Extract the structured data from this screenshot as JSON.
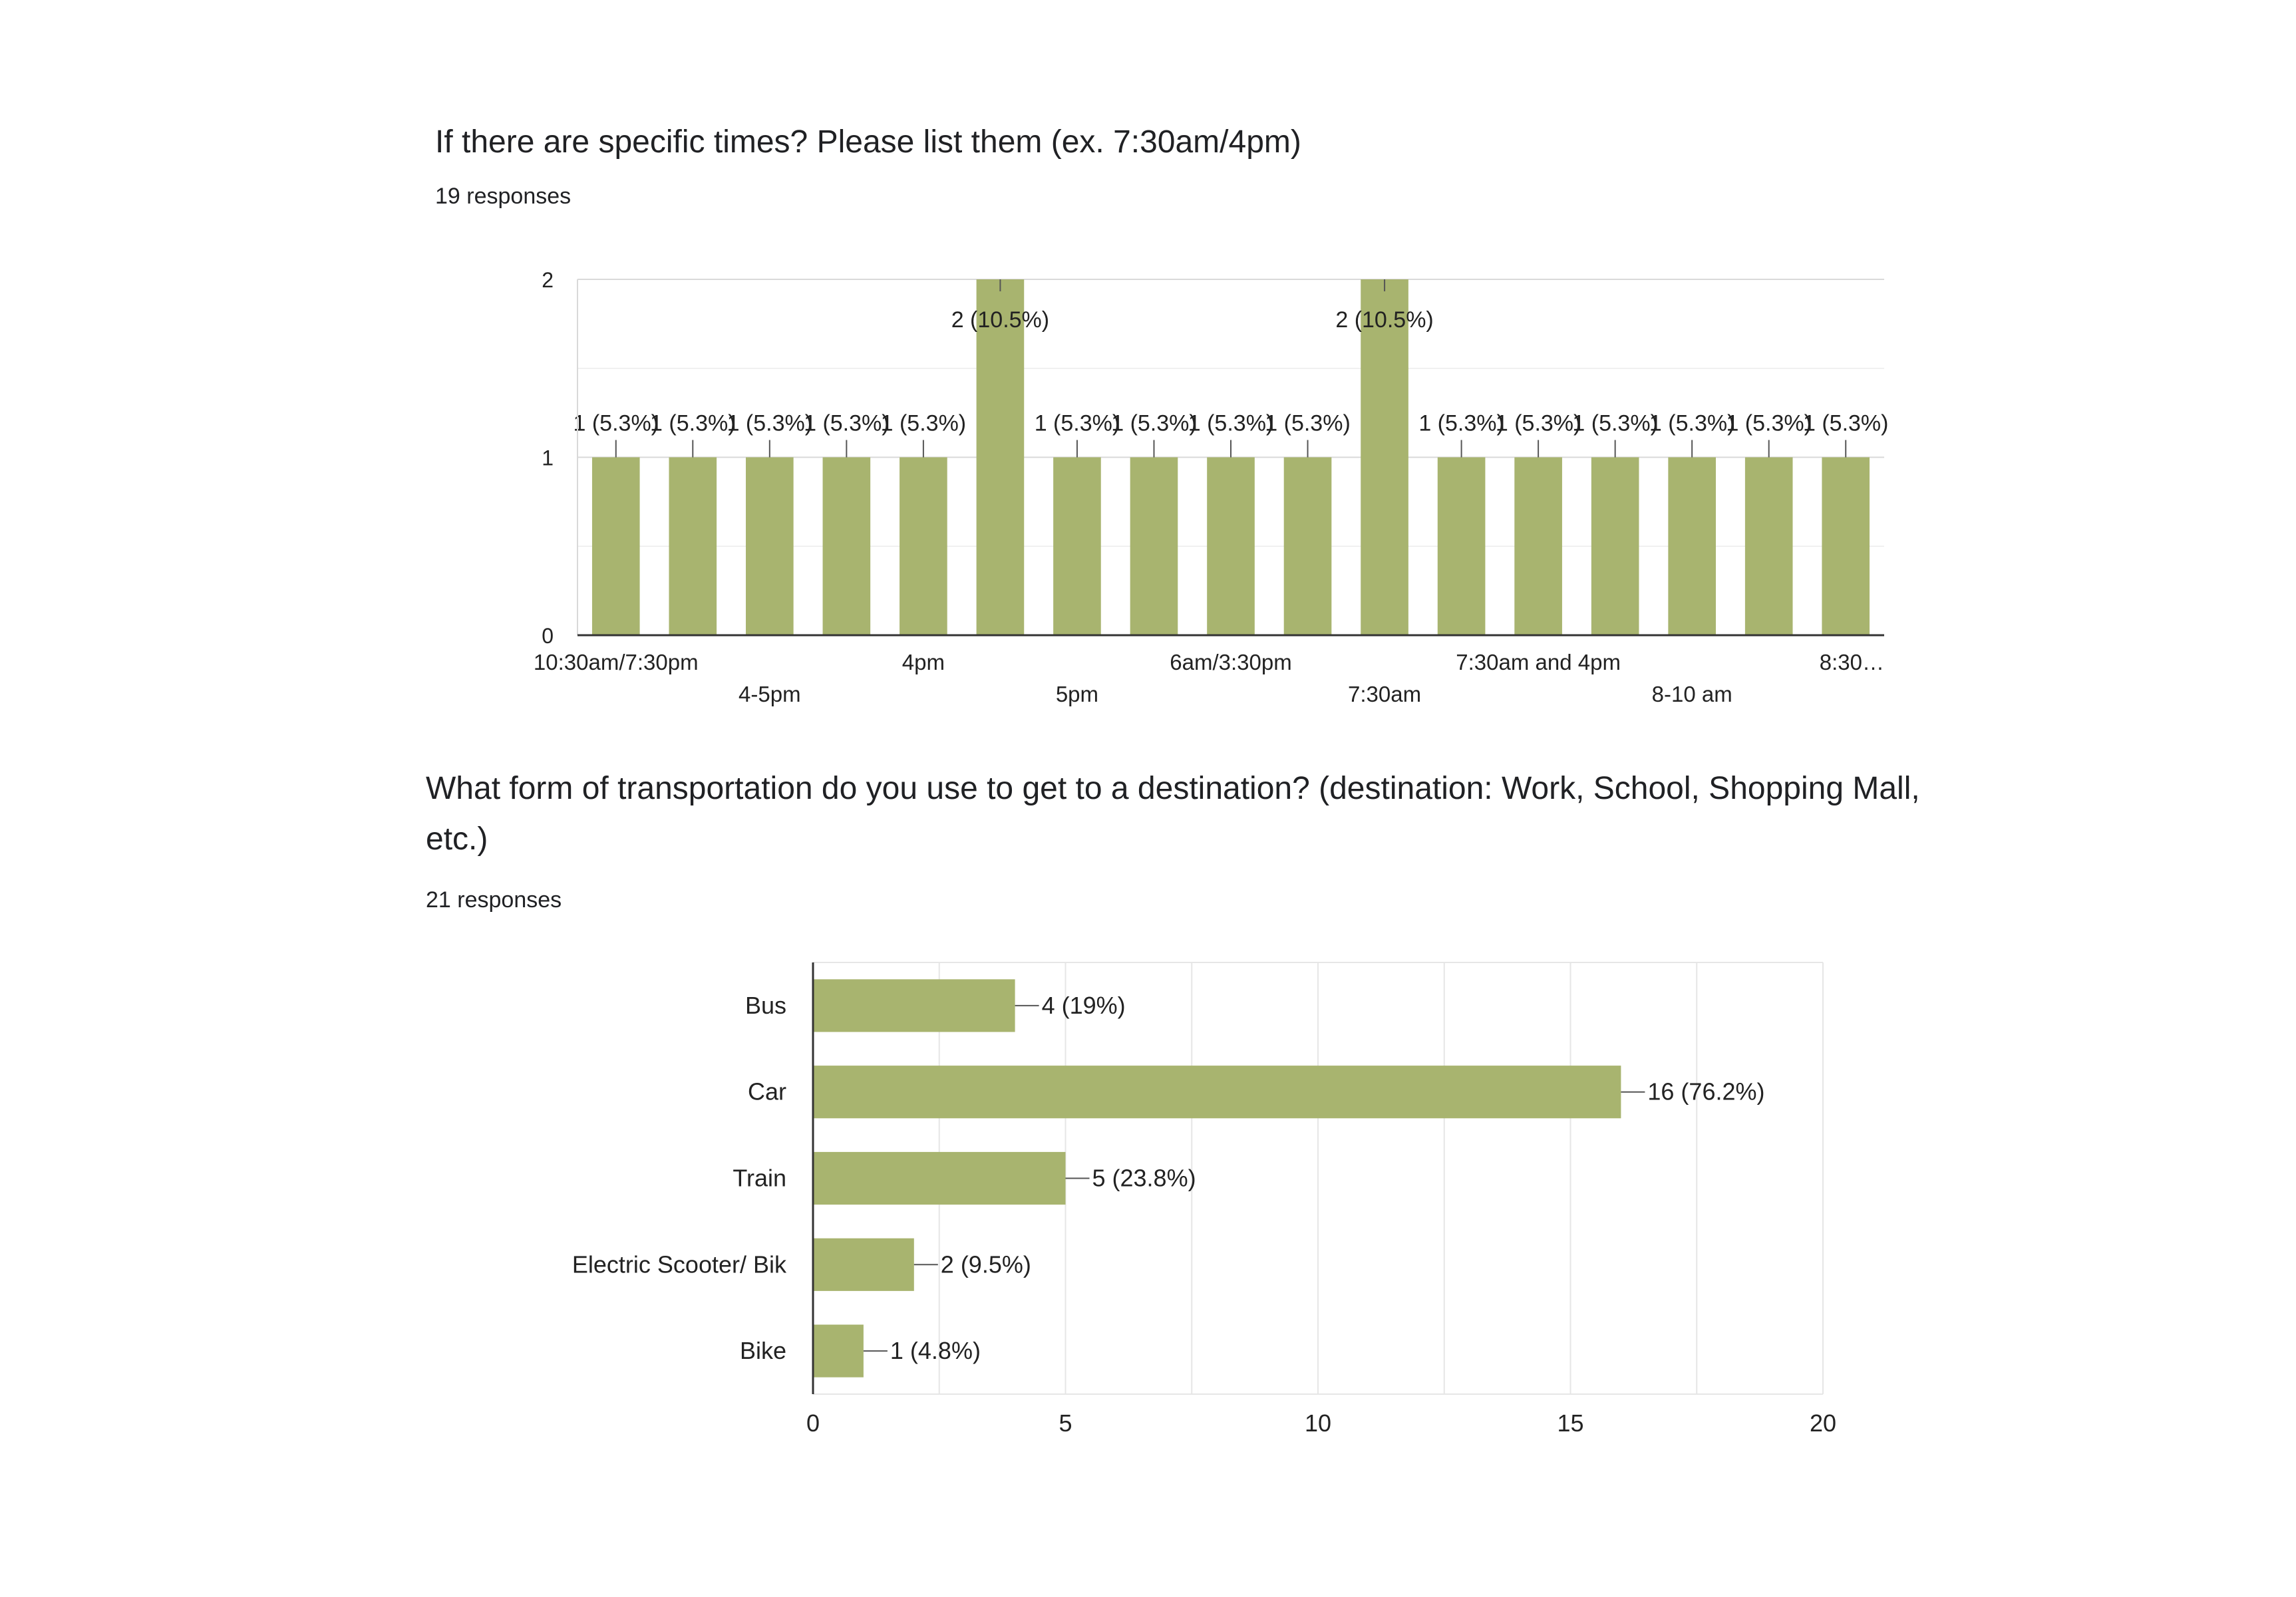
{
  "chart_data": [
    {
      "type": "bar",
      "orientation": "vertical",
      "title": "If there are specific times? Please list them (ex. 7:30am/4pm)",
      "subtitle": "19 responses",
      "categories": [
        "10:30am/7:30pm",
        "",
        "4-5pm",
        "",
        "4pm",
        "",
        "5pm",
        "",
        "6am/3:30pm",
        "",
        "7:30am",
        "",
        "7:30am and 4pm",
        "",
        "8-10 am",
        "",
        "8:30…"
      ],
      "values": [
        1,
        1,
        1,
        1,
        1,
        2,
        1,
        1,
        1,
        1,
        2,
        1,
        1,
        1,
        1,
        1,
        1
      ],
      "data_labels": [
        "1 (5.3%)",
        "1 (5.3%)",
        "1 (5.3%)",
        "1 (5.3%)",
        "1 (5.3%)",
        "2 (10.5%)",
        "1 (5.3%)",
        "1 (5.3%)",
        "1 (5.3%)",
        "1 (5.3%)",
        "2 (10.5%)",
        "1 (5.3%)",
        "1 (5.3%)",
        "1 (5.3%)",
        "1 (5.3%)",
        "1 (5.3%)",
        "1 (5.3%)"
      ],
      "ylim": [
        0,
        2
      ],
      "yticks": [
        0,
        1,
        2
      ],
      "grid": true,
      "bar_color": "#a8b46f"
    },
    {
      "type": "bar",
      "orientation": "horizontal",
      "title": "What form of transportation do you use to get to a destination? (destination: Work, School, Shopping Mall, etc.)",
      "subtitle": "21 responses",
      "categories": [
        "Bus",
        "Car",
        "Train",
        "Electric Scooter/ Bik",
        "Bike"
      ],
      "values": [
        4,
        16,
        5,
        2,
        1
      ],
      "data_labels": [
        "4 (19%)",
        "16 (76.2%)",
        "5 (23.8%)",
        "2 (9.5%)",
        "1 (4.8%)"
      ],
      "xlim": [
        0,
        20
      ],
      "xticks": [
        0,
        5,
        10,
        15,
        20
      ],
      "grid": true,
      "bar_color": "#a8b46f"
    }
  ]
}
